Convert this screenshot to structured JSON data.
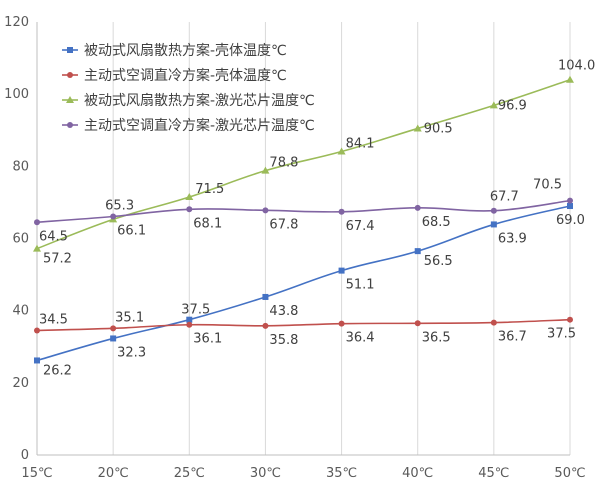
{
  "chart_data": {
    "type": "line",
    "x_categories": [
      "15℃",
      "20℃",
      "25℃",
      "30℃",
      "35℃",
      "40℃",
      "45℃",
      "50℃"
    ],
    "ylim": [
      0,
      120
    ],
    "y_ticks": [
      0,
      20,
      40,
      60,
      80,
      100,
      120
    ],
    "grid": "vertical",
    "legend_position": "top-left",
    "series": [
      {
        "name": "被动式风扇散热方案-壳体温度℃",
        "color": "#4472C4",
        "marker": "square",
        "values": [
          26.2,
          32.3,
          37.5,
          43.8,
          51.1,
          56.5,
          63.9,
          69.0
        ],
        "labels": [
          "26.2",
          "32.3",
          "37.5",
          "43.8",
          "51.1",
          "56.5",
          "63.9",
          "69.0"
        ]
      },
      {
        "name": "主动式空调直冷方案-壳体温度℃",
        "color": "#C0504D",
        "marker": "circle",
        "values": [
          34.5,
          35.1,
          36.1,
          35.8,
          36.4,
          36.5,
          36.7,
          37.5
        ],
        "labels": [
          "34.5",
          "35.1",
          "36.1",
          "35.8",
          "36.4",
          "36.5",
          "36.7",
          "37.5"
        ]
      },
      {
        "name": "被动式风扇散热方案-激光芯片温度℃",
        "color": "#9BBB59",
        "marker": "triangle",
        "values": [
          57.2,
          65.3,
          71.5,
          78.8,
          84.1,
          90.5,
          96.9,
          104.0
        ],
        "labels": [
          "57.2",
          "65.3",
          "71.5",
          "78.8",
          "84.1",
          "90.5",
          "96.9",
          "104.0"
        ]
      },
      {
        "name": "主动式空调直冷方案-激光芯片温度℃",
        "color": "#8064A2",
        "marker": "circle",
        "values": [
          64.5,
          66.1,
          68.1,
          67.8,
          67.4,
          68.5,
          67.7,
          70.5
        ],
        "labels": [
          "64.5",
          "66.1",
          "68.1",
          "67.8",
          "67.4",
          "68.5",
          "67.7",
          "70.5"
        ]
      }
    ]
  }
}
